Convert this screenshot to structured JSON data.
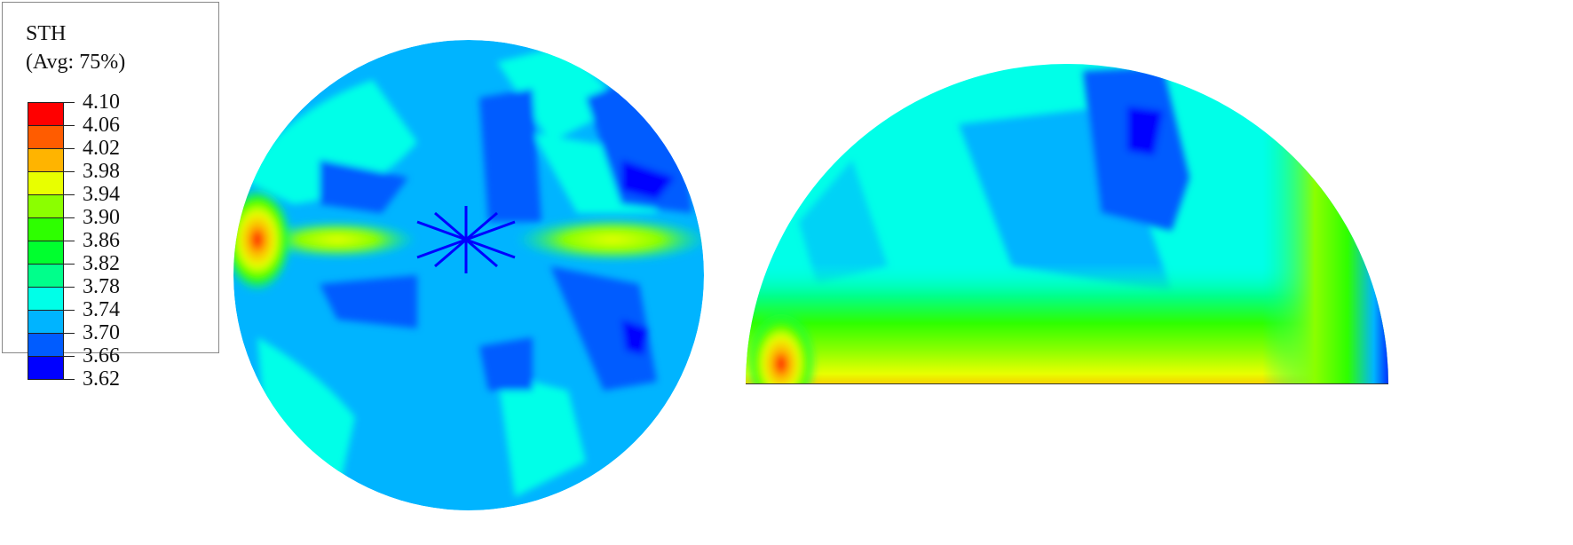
{
  "legend": {
    "variable": "STH",
    "averaging": "(Avg: 75%)",
    "levels": [
      "4.10",
      "4.06",
      "4.02",
      "3.98",
      "3.94",
      "3.90",
      "3.86",
      "3.82",
      "3.78",
      "3.74",
      "3.70",
      "3.66",
      "3.62"
    ],
    "colors": [
      "#ff0000",
      "#ff5c00",
      "#ffb400",
      "#e8ff00",
      "#8bff00",
      "#2eff00",
      "#00ff2e",
      "#00ff8b",
      "#00ffe8",
      "#00b4ff",
      "#005cff",
      "#0000ff"
    ]
  },
  "views": [
    {
      "name": "top-view",
      "dominant_range": "3.70–3.78"
    },
    {
      "name": "side-view",
      "dominant_range": "3.74–3.78"
    }
  ]
}
